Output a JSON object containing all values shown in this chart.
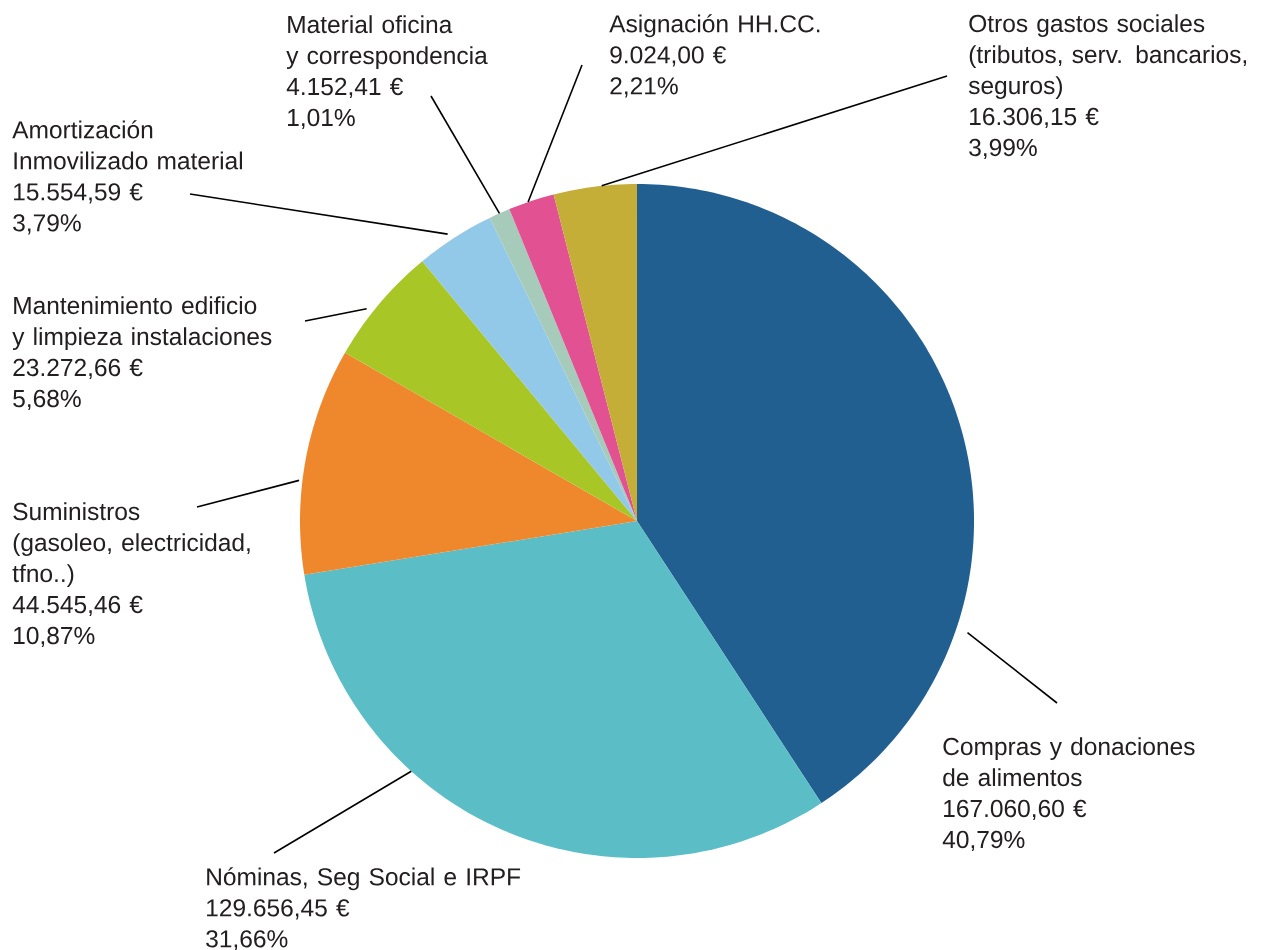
{
  "chart_data": {
    "type": "pie",
    "categories": [
      "Compras y donaciones\nde alimentos",
      "Nóminas, Seg Social e IRPF",
      "Suministros\n(gasoleo, electricidad,\ntfno..)",
      "Mantenimiento edificio\ny limpieza instalaciones",
      "Amortización\nInmovilizado material",
      "Material oficina\ny correspondencia",
      "Asignación HH.CC.",
      "Otros gastos sociales\n(tributos, serv. bancarios,\nseguros)"
    ],
    "values": [
      167060.6,
      129656.45,
      44545.46,
      23272.66,
      15554.59,
      4152.41,
      9024.0,
      16306.15
    ],
    "colors": [
      "#215f91",
      "#5bbec7",
      "#ef882d",
      "#a9c627",
      "#92c9e8",
      "#a6cbbb",
      "#e25192",
      "#c4ae38"
    ],
    "value_labels": [
      "167.060,60 €\n40,79%",
      "129.656,45 €\n31,66%",
      "44.545,46 €\n10,87%",
      "23.272,66 €\n5,68%",
      "15.554,59 €\n3,79%",
      "4.152,41 €\n1,01%",
      "9.024,00 €\n2,21%",
      "16.306,15 €\n3,99%"
    ]
  }
}
